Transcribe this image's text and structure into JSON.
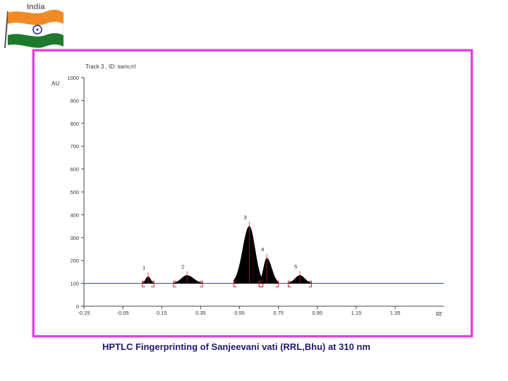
{
  "header": {
    "country_label": "India"
  },
  "caption": "HPTLC Fingerprinting of  Sanjeevani vati (RRL,Bhu) at 310 nm",
  "colors": {
    "frame": "#e040e0",
    "baseline": "#2040b0",
    "peak_fill": "#000000",
    "marker": "#d02020",
    "caption_text": "#1a1a6e"
  },
  "chart_data": {
    "type": "area",
    "title": "Track  3 , ID: sanv,rrl",
    "xlabel": "Rf",
    "ylabel": "AU",
    "xlim": [
      -0.25,
      1.6
    ],
    "ylim": [
      0,
      1000
    ],
    "xticks": [
      "-0.25",
      "-0.05",
      "0.15",
      "0.35",
      "0.55",
      "0.75",
      "0.95",
      "1.15",
      "1.35"
    ],
    "xtick_values": [
      -0.25,
      -0.05,
      0.15,
      0.35,
      0.55,
      0.75,
      0.95,
      1.15,
      1.35
    ],
    "yticks": [
      "0",
      "100",
      "200",
      "300",
      "400",
      "500",
      "600",
      "700",
      "800",
      "900",
      "1000"
    ],
    "ytick_values": [
      0,
      100,
      200,
      300,
      400,
      500,
      600,
      700,
      800,
      900,
      1000
    ],
    "baseline": 100,
    "peaks": [
      {
        "label": "1",
        "rf": 0.08,
        "height": 130,
        "start": 0.05,
        "end": 0.11
      },
      {
        "label": "2",
        "rf": 0.28,
        "height": 135,
        "start": 0.21,
        "end": 0.36
      },
      {
        "label": "3",
        "rf": 0.6,
        "height": 350,
        "start": 0.52,
        "end": 0.67
      },
      {
        "label": "4",
        "rf": 0.69,
        "height": 210,
        "start": 0.65,
        "end": 0.75
      },
      {
        "label": "5",
        "rf": 0.86,
        "height": 135,
        "start": 0.8,
        "end": 0.92
      }
    ]
  }
}
